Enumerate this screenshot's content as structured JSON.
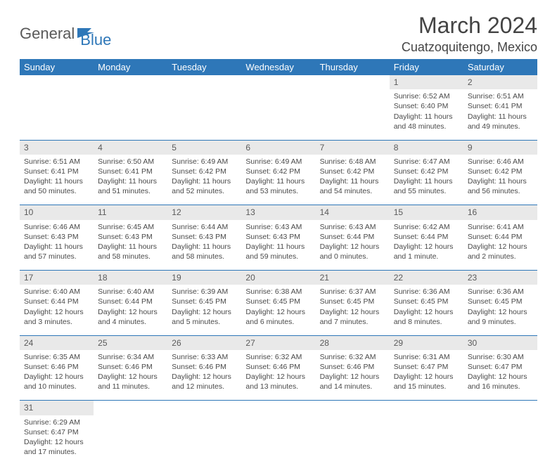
{
  "logo": {
    "part1": "General",
    "part2": "Blue"
  },
  "title": "March 2024",
  "location": "Cuatzoquitengo, Mexico",
  "colors": {
    "header_bg": "#2e77b8",
    "header_text": "#ffffff",
    "daynum_bg": "#e9e9e9",
    "row_border": "#2e77b8",
    "text": "#4a4a4a"
  },
  "day_headers": [
    "Sunday",
    "Monday",
    "Tuesday",
    "Wednesday",
    "Thursday",
    "Friday",
    "Saturday"
  ],
  "weeks": [
    [
      null,
      null,
      null,
      null,
      null,
      {
        "n": "1",
        "sr": "Sunrise: 6:52 AM",
        "ss": "Sunset: 6:40 PM",
        "d1": "Daylight: 11 hours",
        "d2": "and 48 minutes."
      },
      {
        "n": "2",
        "sr": "Sunrise: 6:51 AM",
        "ss": "Sunset: 6:41 PM",
        "d1": "Daylight: 11 hours",
        "d2": "and 49 minutes."
      }
    ],
    [
      {
        "n": "3",
        "sr": "Sunrise: 6:51 AM",
        "ss": "Sunset: 6:41 PM",
        "d1": "Daylight: 11 hours",
        "d2": "and 50 minutes."
      },
      {
        "n": "4",
        "sr": "Sunrise: 6:50 AM",
        "ss": "Sunset: 6:41 PM",
        "d1": "Daylight: 11 hours",
        "d2": "and 51 minutes."
      },
      {
        "n": "5",
        "sr": "Sunrise: 6:49 AM",
        "ss": "Sunset: 6:42 PM",
        "d1": "Daylight: 11 hours",
        "d2": "and 52 minutes."
      },
      {
        "n": "6",
        "sr": "Sunrise: 6:49 AM",
        "ss": "Sunset: 6:42 PM",
        "d1": "Daylight: 11 hours",
        "d2": "and 53 minutes."
      },
      {
        "n": "7",
        "sr": "Sunrise: 6:48 AM",
        "ss": "Sunset: 6:42 PM",
        "d1": "Daylight: 11 hours",
        "d2": "and 54 minutes."
      },
      {
        "n": "8",
        "sr": "Sunrise: 6:47 AM",
        "ss": "Sunset: 6:42 PM",
        "d1": "Daylight: 11 hours",
        "d2": "and 55 minutes."
      },
      {
        "n": "9",
        "sr": "Sunrise: 6:46 AM",
        "ss": "Sunset: 6:42 PM",
        "d1": "Daylight: 11 hours",
        "d2": "and 56 minutes."
      }
    ],
    [
      {
        "n": "10",
        "sr": "Sunrise: 6:46 AM",
        "ss": "Sunset: 6:43 PM",
        "d1": "Daylight: 11 hours",
        "d2": "and 57 minutes."
      },
      {
        "n": "11",
        "sr": "Sunrise: 6:45 AM",
        "ss": "Sunset: 6:43 PM",
        "d1": "Daylight: 11 hours",
        "d2": "and 58 minutes."
      },
      {
        "n": "12",
        "sr": "Sunrise: 6:44 AM",
        "ss": "Sunset: 6:43 PM",
        "d1": "Daylight: 11 hours",
        "d2": "and 58 minutes."
      },
      {
        "n": "13",
        "sr": "Sunrise: 6:43 AM",
        "ss": "Sunset: 6:43 PM",
        "d1": "Daylight: 11 hours",
        "d2": "and 59 minutes."
      },
      {
        "n": "14",
        "sr": "Sunrise: 6:43 AM",
        "ss": "Sunset: 6:44 PM",
        "d1": "Daylight: 12 hours",
        "d2": "and 0 minutes."
      },
      {
        "n": "15",
        "sr": "Sunrise: 6:42 AM",
        "ss": "Sunset: 6:44 PM",
        "d1": "Daylight: 12 hours",
        "d2": "and 1 minute."
      },
      {
        "n": "16",
        "sr": "Sunrise: 6:41 AM",
        "ss": "Sunset: 6:44 PM",
        "d1": "Daylight: 12 hours",
        "d2": "and 2 minutes."
      }
    ],
    [
      {
        "n": "17",
        "sr": "Sunrise: 6:40 AM",
        "ss": "Sunset: 6:44 PM",
        "d1": "Daylight: 12 hours",
        "d2": "and 3 minutes."
      },
      {
        "n": "18",
        "sr": "Sunrise: 6:40 AM",
        "ss": "Sunset: 6:44 PM",
        "d1": "Daylight: 12 hours",
        "d2": "and 4 minutes."
      },
      {
        "n": "19",
        "sr": "Sunrise: 6:39 AM",
        "ss": "Sunset: 6:45 PM",
        "d1": "Daylight: 12 hours",
        "d2": "and 5 minutes."
      },
      {
        "n": "20",
        "sr": "Sunrise: 6:38 AM",
        "ss": "Sunset: 6:45 PM",
        "d1": "Daylight: 12 hours",
        "d2": "and 6 minutes."
      },
      {
        "n": "21",
        "sr": "Sunrise: 6:37 AM",
        "ss": "Sunset: 6:45 PM",
        "d1": "Daylight: 12 hours",
        "d2": "and 7 minutes."
      },
      {
        "n": "22",
        "sr": "Sunrise: 6:36 AM",
        "ss": "Sunset: 6:45 PM",
        "d1": "Daylight: 12 hours",
        "d2": "and 8 minutes."
      },
      {
        "n": "23",
        "sr": "Sunrise: 6:36 AM",
        "ss": "Sunset: 6:45 PM",
        "d1": "Daylight: 12 hours",
        "d2": "and 9 minutes."
      }
    ],
    [
      {
        "n": "24",
        "sr": "Sunrise: 6:35 AM",
        "ss": "Sunset: 6:46 PM",
        "d1": "Daylight: 12 hours",
        "d2": "and 10 minutes."
      },
      {
        "n": "25",
        "sr": "Sunrise: 6:34 AM",
        "ss": "Sunset: 6:46 PM",
        "d1": "Daylight: 12 hours",
        "d2": "and 11 minutes."
      },
      {
        "n": "26",
        "sr": "Sunrise: 6:33 AM",
        "ss": "Sunset: 6:46 PM",
        "d1": "Daylight: 12 hours",
        "d2": "and 12 minutes."
      },
      {
        "n": "27",
        "sr": "Sunrise: 6:32 AM",
        "ss": "Sunset: 6:46 PM",
        "d1": "Daylight: 12 hours",
        "d2": "and 13 minutes."
      },
      {
        "n": "28",
        "sr": "Sunrise: 6:32 AM",
        "ss": "Sunset: 6:46 PM",
        "d1": "Daylight: 12 hours",
        "d2": "and 14 minutes."
      },
      {
        "n": "29",
        "sr": "Sunrise: 6:31 AM",
        "ss": "Sunset: 6:47 PM",
        "d1": "Daylight: 12 hours",
        "d2": "and 15 minutes."
      },
      {
        "n": "30",
        "sr": "Sunrise: 6:30 AM",
        "ss": "Sunset: 6:47 PM",
        "d1": "Daylight: 12 hours",
        "d2": "and 16 minutes."
      }
    ],
    [
      {
        "n": "31",
        "sr": "Sunrise: 6:29 AM",
        "ss": "Sunset: 6:47 PM",
        "d1": "Daylight: 12 hours",
        "d2": "and 17 minutes."
      },
      null,
      null,
      null,
      null,
      null,
      null
    ]
  ]
}
